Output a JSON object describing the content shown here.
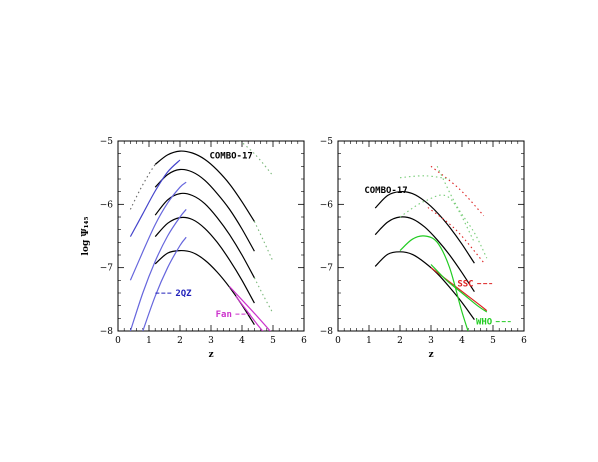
{
  "chart_data": [
    {
      "type": "line",
      "xlabel": "z",
      "ylabel": "log Ψ₁₄₅",
      "xlim": [
        0,
        6
      ],
      "ylim": [
        -8,
        -5
      ],
      "xticks": [
        "0",
        "1",
        "2",
        "3",
        "4",
        "5",
        "6"
      ],
      "yticks": [
        "−5",
        "−6",
        "−7",
        "−8"
      ],
      "series": [
        {
          "group": "combo17",
          "color": "#000000",
          "style": "solid",
          "x": [
            1.2,
            1.6,
            2.0,
            2.4,
            2.8,
            3.2,
            3.6,
            4.0,
            4.4
          ],
          "y": [
            -5.37,
            -5.22,
            -5.16,
            -5.19,
            -5.29,
            -5.46,
            -5.68,
            -5.96,
            -6.27
          ]
        },
        {
          "group": "combo17",
          "color": "#000000",
          "style": "solid",
          "x": [
            1.2,
            1.6,
            2.0,
            2.4,
            2.8,
            3.2,
            3.6,
            4.0,
            4.4
          ],
          "y": [
            -5.73,
            -5.53,
            -5.45,
            -5.49,
            -5.62,
            -5.83,
            -6.08,
            -6.39,
            -6.74
          ]
        },
        {
          "group": "combo17",
          "color": "#000000",
          "style": "solid",
          "x": [
            1.2,
            1.6,
            2.0,
            2.4,
            2.8,
            3.2,
            3.6,
            4.0,
            4.4
          ],
          "y": [
            -6.17,
            -5.93,
            -5.83,
            -5.86,
            -5.99,
            -6.21,
            -6.48,
            -6.8,
            -7.16
          ]
        },
        {
          "group": "combo17",
          "color": "#000000",
          "style": "solid",
          "x": [
            1.2,
            1.6,
            2.0,
            2.4,
            2.8,
            3.2,
            3.6,
            4.0,
            4.4
          ],
          "y": [
            -6.51,
            -6.3,
            -6.21,
            -6.24,
            -6.38,
            -6.6,
            -6.88,
            -7.2,
            -7.56
          ]
        },
        {
          "group": "combo17",
          "color": "#000000",
          "style": "solid",
          "x": [
            1.2,
            1.6,
            2.0,
            2.4,
            2.8,
            3.2,
            3.6,
            4.0,
            4.4
          ],
          "y": [
            -6.94,
            -6.77,
            -6.73,
            -6.76,
            -6.88,
            -7.07,
            -7.31,
            -7.59,
            -7.9
          ]
        },
        {
          "group": "combo17",
          "color": "#666666",
          "style": "dotted",
          "x": [
            0.4,
            0.7,
            1.0,
            1.2
          ],
          "y": [
            -6.08,
            -5.78,
            -5.52,
            -5.37
          ]
        },
        {
          "group": "combo17",
          "color": "#7ab87a",
          "style": "dotted",
          "x": [
            4.4,
            4.7,
            5.0
          ],
          "y": [
            -6.27,
            -6.58,
            -6.9
          ]
        },
        {
          "group": "combo17",
          "color": "#7ab87a",
          "style": "dotted",
          "x": [
            3.7,
            4.4,
            5.0
          ],
          "y": [
            -4.9,
            -5.2,
            -5.55
          ]
        },
        {
          "group": "combo17",
          "color": "#7ab87a",
          "style": "dotted",
          "x": [
            4.4,
            4.7,
            5.0
          ],
          "y": [
            -7.16,
            -7.45,
            -7.72
          ]
        },
        {
          "group": "2qz",
          "color": "#4444cc",
          "style": "solid",
          "x": [
            0.4,
            0.8,
            1.2,
            1.6,
            2.0
          ],
          "y": [
            -6.51,
            -6.15,
            -5.79,
            -5.49,
            -5.3
          ]
        },
        {
          "group": "2qz",
          "color": "#6666dd",
          "style": "solid",
          "x": [
            0.4,
            0.8,
            1.2,
            1.6,
            2.0,
            2.2
          ],
          "y": [
            -7.2,
            -6.75,
            -6.32,
            -5.98,
            -5.73,
            -5.65
          ]
        },
        {
          "group": "2qz",
          "color": "#6666dd",
          "style": "solid",
          "x": [
            0.4,
            0.8,
            1.2,
            1.6,
            2.0,
            2.2
          ],
          "y": [
            -8.0,
            -7.4,
            -6.9,
            -6.5,
            -6.2,
            -6.08
          ]
        },
        {
          "group": "2qz",
          "color": "#6666dd",
          "style": "solid",
          "x": [
            0.8,
            1.2,
            1.6,
            2.0,
            2.2
          ],
          "y": [
            -8.0,
            -7.45,
            -7.0,
            -6.65,
            -6.52
          ]
        },
        {
          "group": "fan",
          "color": "#cc33cc",
          "style": "solid",
          "x": [
            3.6,
            4.4,
            5.0
          ],
          "y": [
            -7.3,
            -7.72,
            -8.05
          ]
        },
        {
          "group": "fan",
          "color": "#cc33cc",
          "style": "solid",
          "x": [
            3.8,
            4.5,
            5.1
          ],
          "y": [
            -7.45,
            -7.9,
            -8.25
          ]
        }
      ],
      "annotations": [
        {
          "text": "COMBO-17",
          "color": "#000000",
          "x": 2.95,
          "y": -5.28
        },
        {
          "text": "2QZ",
          "color": "#2222bb",
          "x": 1.85,
          "y": -7.45
        },
        {
          "text": "Fan",
          "color": "#cc33cc",
          "x": 3.15,
          "y": -7.78
        }
      ]
    },
    {
      "type": "line",
      "xlabel": "z",
      "ylabel": "",
      "xlim": [
        0,
        6
      ],
      "ylim": [
        -8,
        -5
      ],
      "xticks": [
        "0",
        "1",
        "2",
        "3",
        "4",
        "5",
        "6"
      ],
      "yticks": [
        "−5",
        "−6",
        "−7",
        "−8"
      ],
      "series": [
        {
          "group": "combo17",
          "color": "#000000",
          "style": "solid",
          "x": [
            1.2,
            1.6,
            2.0,
            2.4,
            2.8,
            3.2,
            3.6,
            4.0,
            4.4
          ],
          "y": [
            -6.06,
            -5.86,
            -5.8,
            -5.83,
            -5.95,
            -6.13,
            -6.36,
            -6.63,
            -6.93
          ]
        },
        {
          "group": "combo17",
          "color": "#000000",
          "style": "solid",
          "x": [
            1.2,
            1.6,
            2.0,
            2.4,
            2.8,
            3.2,
            3.6,
            4.0,
            4.4
          ],
          "y": [
            -6.48,
            -6.28,
            -6.2,
            -6.23,
            -6.36,
            -6.56,
            -6.8,
            -7.08,
            -7.38
          ]
        },
        {
          "group": "combo17",
          "color": "#000000",
          "style": "solid",
          "x": [
            1.2,
            1.6,
            2.0,
            2.4,
            2.8,
            3.2,
            3.6,
            4.0,
            4.4
          ],
          "y": [
            -6.98,
            -6.79,
            -6.75,
            -6.79,
            -6.92,
            -7.09,
            -7.31,
            -7.55,
            -7.82
          ]
        },
        {
          "group": "ssc",
          "color": "#dd2222",
          "style": "dotted",
          "x": [
            3.0,
            3.9,
            4.7
          ],
          "y": [
            -5.4,
            -5.75,
            -6.18
          ]
        },
        {
          "group": "ssc",
          "color": "#dd2222",
          "style": "dotted",
          "x": [
            2.9,
            3.8,
            4.7
          ],
          "y": [
            -6.05,
            -6.4,
            -6.92
          ]
        },
        {
          "group": "ssc",
          "color": "#dd2222",
          "style": "solid",
          "x": [
            3.0,
            3.4,
            3.8,
            4.2,
            4.6,
            4.8
          ],
          "y": [
            -7.0,
            -7.15,
            -7.3,
            -7.45,
            -7.6,
            -7.68
          ]
        },
        {
          "group": "who",
          "color": "#22cc22",
          "style": "solid",
          "x": [
            2.0,
            2.4,
            2.8,
            3.2,
            3.6,
            4.0,
            4.4
          ],
          "y": [
            -6.73,
            -6.55,
            -6.5,
            -6.6,
            -7.0,
            -7.7,
            -8.3
          ]
        },
        {
          "group": "who",
          "color": "#22cc22",
          "style": "solid",
          "x": [
            3.0,
            3.5,
            4.0,
            4.5,
            4.8
          ],
          "y": [
            -6.95,
            -7.2,
            -7.4,
            -7.6,
            -7.7
          ]
        },
        {
          "group": "who",
          "color": "#77cc77",
          "style": "dotted",
          "x": [
            2.0,
            2.8,
            3.6
          ],
          "y": [
            -5.58,
            -5.55,
            -5.6
          ]
        },
        {
          "group": "who",
          "color": "#77cc77",
          "style": "dotted",
          "x": [
            2.0,
            2.8,
            3.6,
            4.4
          ],
          "y": [
            -6.2,
            -5.95,
            -5.9,
            -6.6
          ]
        },
        {
          "group": "who",
          "color": "#77cc77",
          "style": "dotted",
          "x": [
            3.2,
            3.8,
            4.4,
            4.8
          ],
          "y": [
            -5.4,
            -6.0,
            -6.45,
            -6.85
          ]
        }
      ],
      "annotations": [
        {
          "text": "COMBO-17",
          "color": "#000000",
          "x": 0.85,
          "y": -5.82
        },
        {
          "text": "SSC",
          "color": "#dd2222",
          "x": 3.85,
          "y": -7.3
        },
        {
          "text": "WHO",
          "color": "#22cc22",
          "x": 4.45,
          "y": -7.9
        }
      ]
    }
  ]
}
